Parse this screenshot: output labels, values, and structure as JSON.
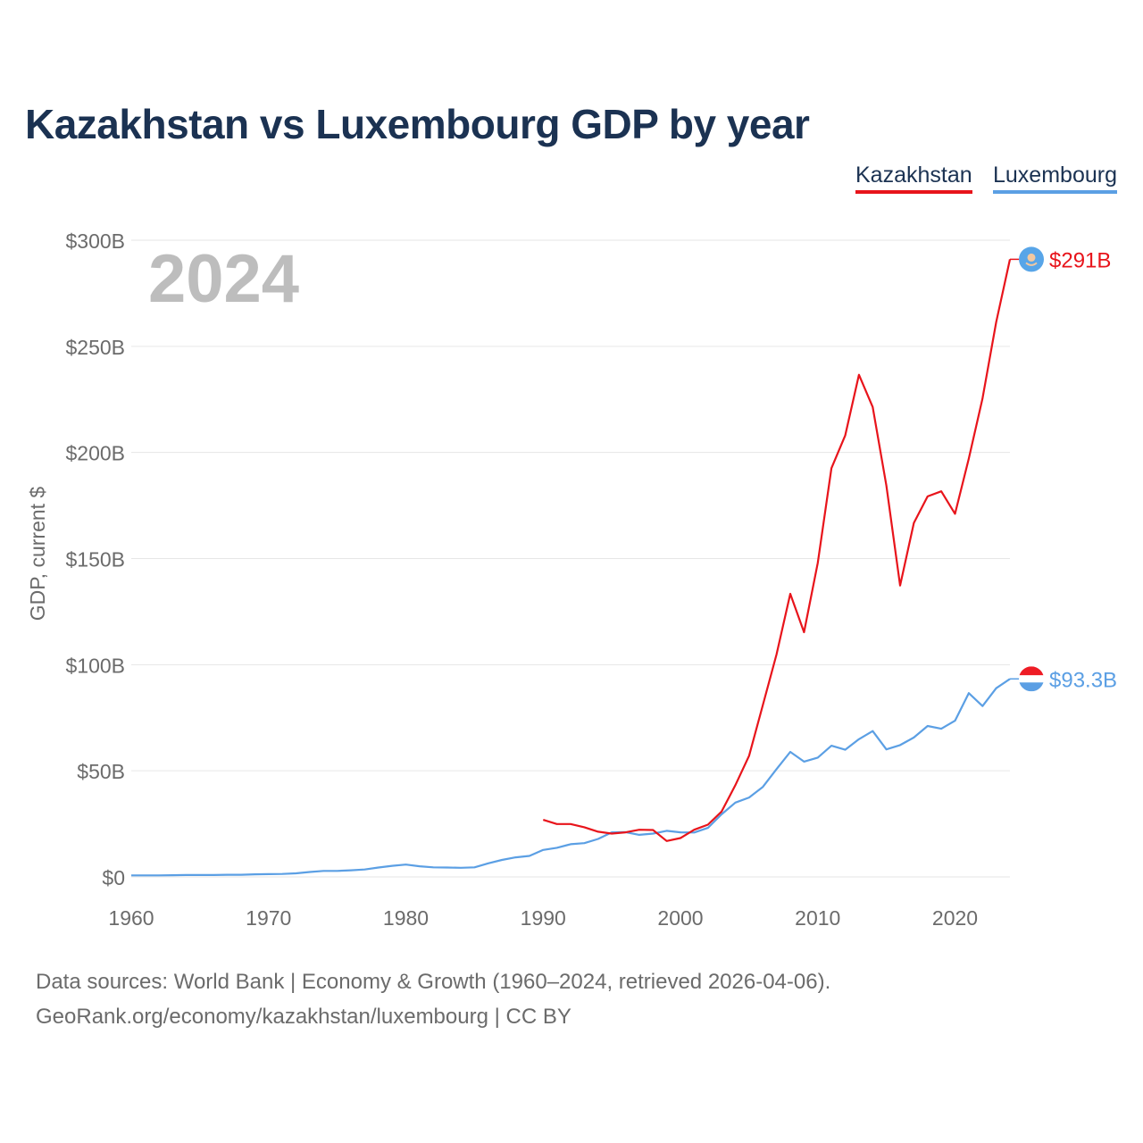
{
  "title": "Kazakhstan vs Luxembourg GDP by year",
  "year_label": "2024",
  "legend": [
    {
      "name": "Kazakhstan",
      "color": "#e8141b"
    },
    {
      "name": "Luxembourg",
      "color": "#5b9fe4"
    }
  ],
  "source_line1": "Data sources: World Bank | Economy & Growth (1960–2024, retrieved 2026-04-06).",
  "source_line2": "GeoRank.org/economy/kazakhstan/luxembourg | CC BY",
  "chart_data": {
    "type": "line",
    "title": "Kazakhstan vs Luxembourg GDP by year",
    "xlabel": "",
    "ylabel": "GDP, current $",
    "xlim": [
      1960,
      2024
    ],
    "ylim": [
      0,
      300
    ],
    "x_ticks": [
      1960,
      1970,
      1980,
      1990,
      2000,
      2010,
      2020
    ],
    "x_tick_labels": [
      "1960",
      "1970",
      "1980",
      "1990",
      "2000",
      "2010",
      "2020"
    ],
    "y_ticks": [
      0,
      50,
      100,
      150,
      200,
      250,
      300
    ],
    "y_tick_labels": [
      "$0",
      "$50B",
      "$100B",
      "$150B",
      "$200B",
      "$250B",
      "$300B"
    ],
    "grid": true,
    "legend_position": "top-right",
    "series": [
      {
        "name": "Kazakhstan",
        "color": "#e8141b",
        "end_label": "$291B",
        "x": [
          1990,
          1991,
          1992,
          1993,
          1994,
          1995,
          1996,
          1997,
          1998,
          1999,
          2000,
          2001,
          2002,
          2003,
          2004,
          2005,
          2006,
          2007,
          2008,
          2009,
          2010,
          2011,
          2012,
          2013,
          2014,
          2015,
          2016,
          2017,
          2018,
          2019,
          2020,
          2021,
          2022,
          2023,
          2024
        ],
        "values": [
          26.9,
          24.9,
          24.9,
          23.4,
          21.3,
          20.4,
          21.0,
          22.2,
          22.1,
          16.9,
          18.3,
          22.2,
          24.6,
          30.8,
          43.2,
          57.1,
          81.0,
          104.8,
          133.4,
          115.3,
          148.0,
          192.6,
          208.0,
          236.6,
          221.4,
          184.4,
          137.3,
          166.8,
          179.3,
          181.7,
          171.1,
          197.1,
          225.5,
          261.4,
          291.0
        ]
      },
      {
        "name": "Luxembourg",
        "color": "#5b9fe4",
        "end_label": "$93.3B",
        "x": [
          1960,
          1961,
          1962,
          1963,
          1964,
          1965,
          1966,
          1967,
          1968,
          1969,
          1970,
          1971,
          1972,
          1973,
          1974,
          1975,
          1976,
          1977,
          1978,
          1979,
          1980,
          1981,
          1982,
          1983,
          1984,
          1985,
          1986,
          1987,
          1988,
          1989,
          1990,
          1991,
          1992,
          1993,
          1994,
          1995,
          1996,
          1997,
          1998,
          1999,
          2000,
          2001,
          2002,
          2003,
          2004,
          2005,
          2006,
          2007,
          2008,
          2009,
          2010,
          2011,
          2012,
          2013,
          2014,
          2015,
          2016,
          2017,
          2018,
          2019,
          2020,
          2021,
          2022,
          2023,
          2024
        ],
        "values": [
          0.7,
          0.7,
          0.7,
          0.8,
          0.9,
          0.9,
          0.9,
          1.0,
          1.0,
          1.2,
          1.3,
          1.4,
          1.7,
          2.3,
          2.8,
          2.8,
          3.1,
          3.5,
          4.4,
          5.2,
          5.8,
          5.0,
          4.5,
          4.4,
          4.3,
          4.5,
          6.4,
          8.0,
          9.2,
          9.9,
          12.7,
          13.7,
          15.4,
          15.9,
          17.9,
          21.0,
          21.1,
          19.8,
          20.4,
          21.7,
          21.0,
          20.9,
          23.1,
          29.5,
          35.0,
          37.4,
          42.4,
          50.8,
          58.9,
          54.3,
          56.2,
          61.8,
          59.9,
          64.9,
          68.7,
          60.1,
          62.1,
          65.7,
          71.1,
          69.8,
          73.6,
          86.6,
          80.5,
          88.9,
          93.3
        ]
      }
    ]
  }
}
